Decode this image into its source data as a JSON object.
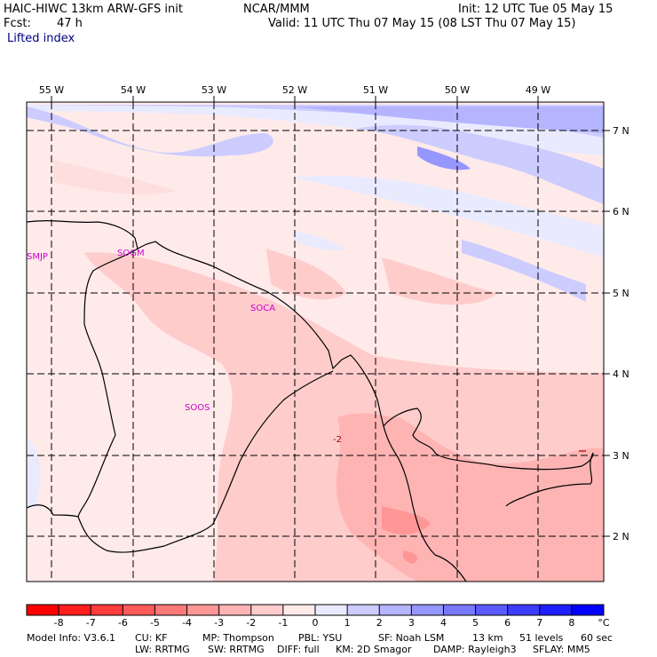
{
  "header": {
    "model_title": "HAIC-HIWC 13km ARW-GFS init",
    "center": "NCAR/MMM",
    "init_time": "Init: 12 UTC Tue 05 May 15",
    "forecast_label": "Fcst:",
    "forecast_hours": "47 h",
    "valid_time": "Valid: 11 UTC Thu 07 May 15 (08 LST Thu 07 May 15)",
    "field_name": "Lifted index"
  },
  "map": {
    "lon_labels": [
      "55 W",
      "54 W",
      "53 W",
      "52 W",
      "51 W",
      "50 W",
      "49 W"
    ],
    "lat_labels": [
      "7 N",
      "6 N",
      "5 N",
      "4 N",
      "3 N",
      "2 N"
    ],
    "station_labels": [
      "SMJP",
      "SOGM",
      "SOCA",
      "SOOS"
    ],
    "contour_labels": [
      "-2"
    ],
    "colors": {
      "border": "#000000",
      "grid": "#000000",
      "station_text": "#cc00cc",
      "contour_text": "#990000"
    }
  },
  "colorbar": {
    "ticks": [
      "-8",
      "-7",
      "-6",
      "-5",
      "-4",
      "-3",
      "-2",
      "-1",
      "0",
      "1",
      "2",
      "3",
      "4",
      "5",
      "6",
      "7",
      "8"
    ],
    "unit": "°C",
    "colors": [
      "#ff0000",
      "#ff1e1e",
      "#ff3c3c",
      "#ff5a5a",
      "#ff7878",
      "#ff9696",
      "#ffb4b4",
      "#ffcccc",
      "#ffeaea",
      "#eaeaff",
      "#ccccff",
      "#b4b4ff",
      "#9696ff",
      "#7878ff",
      "#5a5aff",
      "#3c3cff",
      "#1e1eff",
      "#0000ff"
    ]
  },
  "footer": {
    "line1": [
      "Model Info: V3.6.1",
      "CU: KF",
      "MP: Thompson",
      "PBL: YSU",
      "SF: Noah LSM",
      "13 km",
      "51 levels",
      "60 sec"
    ],
    "line2": [
      "LW: RRTMG",
      "SW: RRTMG",
      "DIFF: full",
      "KM: 2D Smagor",
      "DAMP: Rayleigh3",
      "SFLAY: MM5"
    ]
  }
}
